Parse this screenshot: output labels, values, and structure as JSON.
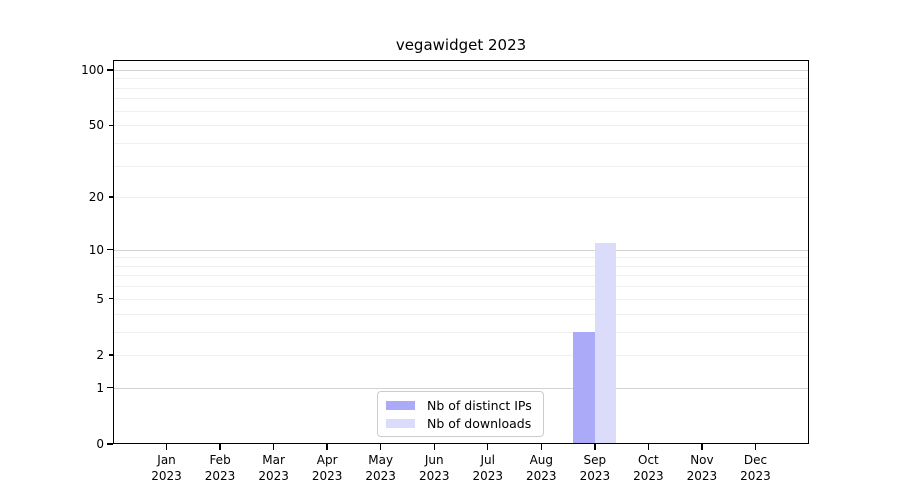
{
  "chart_data": {
    "type": "bar",
    "title": "vegawidget 2023",
    "categories": [
      "Jan 2023",
      "Feb 2023",
      "Mar 2023",
      "Apr 2023",
      "May 2023",
      "Jun 2023",
      "Jul 2023",
      "Aug 2023",
      "Sep 2023",
      "Oct 2023",
      "Nov 2023",
      "Dec 2023"
    ],
    "x_tick_labels": [
      [
        "Jan",
        "2023"
      ],
      [
        "Feb",
        "2023"
      ],
      [
        "Mar",
        "2023"
      ],
      [
        "Apr",
        "2023"
      ],
      [
        "May",
        "2023"
      ],
      [
        "Jun",
        "2023"
      ],
      [
        "Jul",
        "2023"
      ],
      [
        "Aug",
        "2023"
      ],
      [
        "Sep",
        "2023"
      ],
      [
        "Oct",
        "2023"
      ],
      [
        "Nov",
        "2023"
      ],
      [
        "Dec",
        "2023"
      ]
    ],
    "series": [
      {
        "name": "Nb of distinct IPs",
        "color": "#aaaaf9",
        "values": [
          0,
          0,
          0,
          0,
          0,
          0,
          0,
          0,
          3,
          0,
          0,
          0
        ]
      },
      {
        "name": "Nb of downloads",
        "color": "#dbdbfa",
        "values": [
          0,
          0,
          0,
          0,
          0,
          0,
          0,
          0,
          11,
          0,
          0,
          0
        ]
      }
    ],
    "xlabel": "",
    "ylabel": "",
    "yscale": "symlog-log1p",
    "ylim": [
      0,
      113
    ],
    "y_tick_labels": [
      "0",
      "1",
      "2",
      "5",
      "10",
      "20",
      "50",
      "100"
    ],
    "y_labeled_ticks": [
      0,
      1,
      2,
      5,
      10,
      20,
      50,
      100
    ],
    "y_major_gridlines": [
      1,
      10,
      100
    ],
    "y_minor_gridlines": [
      2,
      3,
      4,
      5,
      6,
      7,
      8,
      9,
      20,
      30,
      40,
      50,
      60,
      70,
      80,
      90
    ],
    "grid": "both",
    "legend_position": "lower center",
    "axis_color": "#000000",
    "grid_major_color": "#d2d2d2",
    "grid_minor_color": "#efefef"
  }
}
